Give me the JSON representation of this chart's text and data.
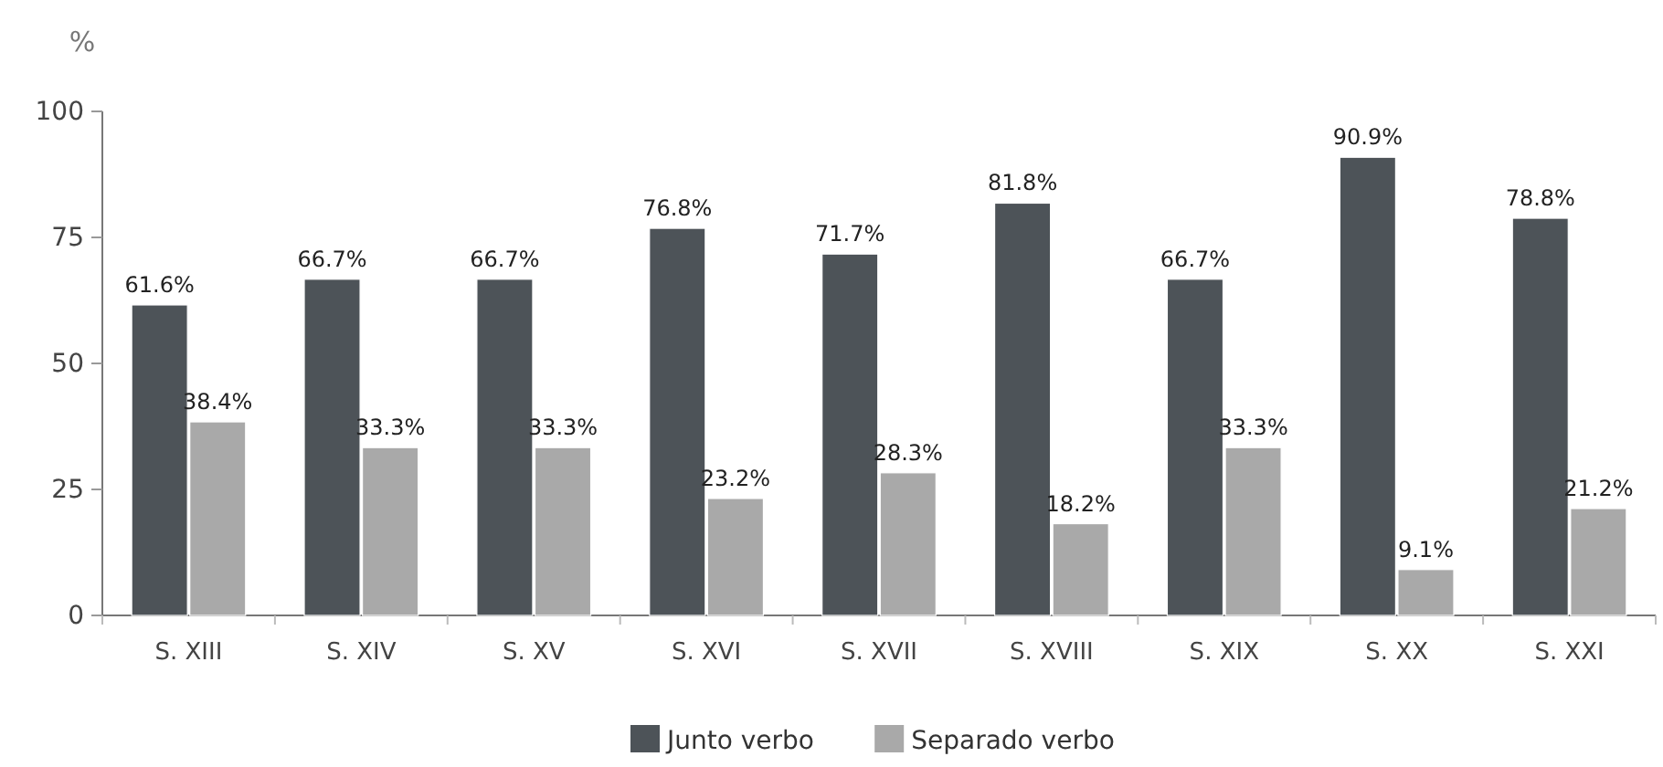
{
  "chart_data": {
    "type": "bar",
    "ylabel": "%",
    "categories": [
      "S. XIII",
      "S. XIV",
      "S. XV",
      "S. XVI",
      "S. XVII",
      "S. XVIII",
      "S. XIX",
      "S. XX",
      "S. XXI"
    ],
    "series": [
      {
        "name": "Junto verbo",
        "color": "#4d5358",
        "values": [
          61.6,
          66.7,
          66.7,
          76.8,
          71.7,
          81.8,
          66.7,
          90.9,
          78.8
        ],
        "value_labels": [
          "61.6%",
          "66.7%",
          "66.7%",
          "76.8%",
          "71.7%",
          "81.8%",
          "66.7%",
          "90.9%",
          "78.8%"
        ]
      },
      {
        "name": "Separado verbo",
        "color": "#a9a9a9",
        "values": [
          38.4,
          33.3,
          33.3,
          23.2,
          28.3,
          18.2,
          33.3,
          9.1,
          21.2
        ],
        "value_labels": [
          "38.4%",
          "33.3%",
          "33.3%",
          "23.2%",
          "28.3%",
          "18.2%",
          "33.3%",
          "9.1%",
          "21.2%"
        ]
      }
    ],
    "ylim": [
      0,
      100
    ],
    "yticks": [
      0,
      25,
      50,
      75,
      100
    ],
    "grid": false,
    "legend": "bottom"
  }
}
